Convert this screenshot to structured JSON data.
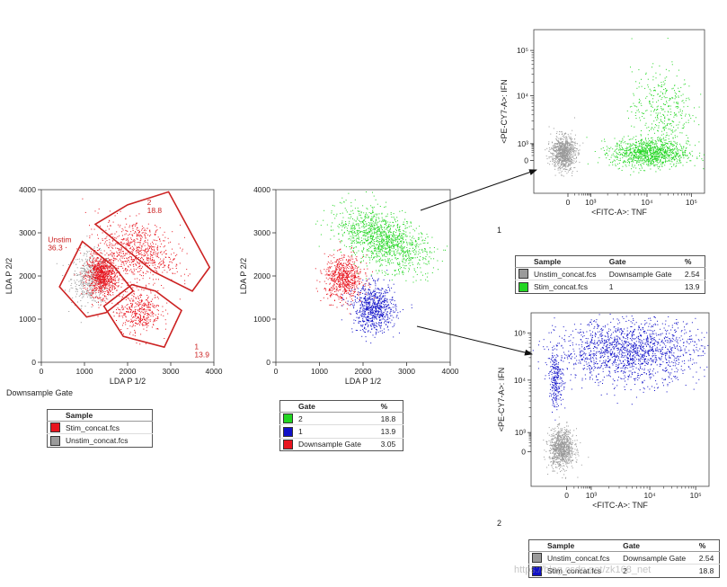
{
  "colors": {
    "red": "#e8141e",
    "gray": "#9a9a9a",
    "green": "#22d622",
    "blue": "#1010c8",
    "gate": "#cc2222"
  },
  "chart_data": [
    {
      "id": "p1",
      "type": "scatter",
      "xlabel": "LDA P 1/2",
      "ylabel": "LDA P 2/2",
      "xlim": [
        0,
        4000
      ],
      "ylim": [
        0,
        4000
      ],
      "xticks": [
        "0",
        "1000",
        "2000",
        "3000",
        "4000"
      ],
      "yticks": [
        "0",
        "1000",
        "2000",
        "3000",
        "4000"
      ],
      "caption": "Downsample Gate",
      "populations": [
        {
          "color": "gray",
          "cx": 1150,
          "cy": 1950,
          "sx": 230,
          "sy": 300,
          "n": 500
        },
        {
          "color": "red",
          "cx": 1400,
          "cy": 2000,
          "sx": 170,
          "sy": 230,
          "n": 900
        },
        {
          "color": "red",
          "cx": 2200,
          "cy": 2600,
          "sx": 470,
          "sy": 330,
          "n": 750,
          "rot": -0.35
        },
        {
          "color": "red",
          "cx": 2250,
          "cy": 1200,
          "sx": 260,
          "sy": 250,
          "n": 420
        }
      ],
      "gates": [
        {
          "name": "Unstim",
          "value": "36.3",
          "label_at": [
            150,
            2780
          ],
          "poly": [
            [
              420,
              1750
            ],
            [
              950,
              2800
            ],
            [
              1700,
              2200
            ],
            [
              2130,
              1650
            ],
            [
              1500,
              1150
            ],
            [
              1050,
              1050
            ]
          ]
        },
        {
          "name": "2",
          "value": "18.8",
          "label_at": [
            2450,
            3650
          ],
          "poly": [
            [
              1250,
              3200
            ],
            [
              2000,
              3650
            ],
            [
              2950,
              3950
            ],
            [
              3900,
              2200
            ],
            [
              3500,
              1650
            ],
            [
              2600,
              2100
            ]
          ]
        },
        {
          "name": "1",
          "value": "13.9",
          "label_at": [
            3550,
            300
          ],
          "poly": [
            [
              1450,
              1300
            ],
            [
              2100,
              1800
            ],
            [
              2650,
              1650
            ],
            [
              3250,
              1200
            ],
            [
              2850,
              350
            ],
            [
              1900,
              600
            ]
          ]
        }
      ],
      "legend": {
        "headers": [
          "",
          "Sample"
        ],
        "rows": [
          {
            "color": "red",
            "cells": [
              "Stim_concat.fcs"
            ]
          },
          {
            "color": "gray",
            "cells": [
              "Unstim_concat.fcs"
            ]
          }
        ]
      }
    },
    {
      "id": "p2",
      "type": "scatter",
      "xlabel": "LDA P 1/2",
      "ylabel": "LDA P 2/2",
      "xlim": [
        0,
        4000
      ],
      "ylim": [
        0,
        4000
      ],
      "xticks": [
        "0",
        "1000",
        "2000",
        "3000",
        "4000"
      ],
      "yticks": [
        "0",
        "1000",
        "2000",
        "3000",
        "4000"
      ],
      "populations": [
        {
          "color": "red",
          "cx": 1550,
          "cy": 1950,
          "sx": 220,
          "sy": 260,
          "n": 700
        },
        {
          "color": "green",
          "cx": 2450,
          "cy": 2850,
          "sx": 560,
          "sy": 290,
          "n": 1300,
          "rot": -0.45
        },
        {
          "color": "blue",
          "cx": 2250,
          "cy": 1250,
          "sx": 240,
          "sy": 270,
          "n": 750
        }
      ],
      "legend": {
        "headers": [
          "",
          "Gate",
          "%"
        ],
        "rows": [
          {
            "color": "green",
            "cells": [
              "2",
              "18.8"
            ]
          },
          {
            "color": "blue",
            "cells": [
              "1",
              "13.9"
            ]
          },
          {
            "color": "red",
            "cells": [
              "Downsample Gate",
              "3.05"
            ]
          }
        ]
      }
    },
    {
      "id": "p3",
      "type": "scatter",
      "xlabel": "<FITC-A>: TNF",
      "ylabel": "<PE-CY7-A>: IFN",
      "xscale": "biexponential",
      "yscale": "biexponential",
      "xticks": [
        "0",
        "10³",
        "10⁴",
        "10⁵"
      ],
      "yticks": [
        "0",
        "10³",
        "10⁴",
        "10⁵"
      ],
      "caption": "1",
      "populations": [
        {
          "color": "gray",
          "cx": 0.17,
          "cy": 0.25,
          "sx": 0.035,
          "sy": 0.05,
          "n": 900
        },
        {
          "color": "green",
          "cx": 0.68,
          "cy": 0.25,
          "sx": 0.11,
          "sy": 0.045,
          "n": 1100
        },
        {
          "color": "green",
          "cx": 0.75,
          "cy": 0.52,
          "sx": 0.09,
          "sy": 0.12,
          "n": 350
        }
      ],
      "legend": {
        "headers": [
          "",
          "Sample",
          "Gate",
          "%"
        ],
        "rows": [
          {
            "color": "gray",
            "cells": [
              "Unstim_concat.fcs",
              "Downsample Gate",
              "2.54"
            ]
          },
          {
            "color": "green",
            "cells": [
              "Stim_concat.fcs",
              "1",
              "13.9"
            ]
          }
        ]
      }
    },
    {
      "id": "p4",
      "type": "scatter",
      "xlabel": "<FITC-A>: TNF",
      "ylabel": "<PE-CY7-A>: IFN",
      "xscale": "biexponential",
      "yscale": "biexponential",
      "xticks": [
        "0",
        "10³",
        "10⁴",
        "10⁵"
      ],
      "yticks": [
        "0",
        "10³",
        "10⁴",
        "10⁵"
      ],
      "caption": "2",
      "populations": [
        {
          "color": "gray",
          "cx": 0.17,
          "cy": 0.22,
          "sx": 0.035,
          "sy": 0.055,
          "n": 900
        },
        {
          "color": "blue",
          "cx": 0.55,
          "cy": 0.78,
          "sx": 0.2,
          "sy": 0.09,
          "n": 1600
        },
        {
          "color": "blue",
          "cx": 0.14,
          "cy": 0.62,
          "sx": 0.02,
          "sy": 0.08,
          "n": 250
        }
      ],
      "legend": {
        "headers": [
          "",
          "Sample",
          "Gate",
          "%"
        ],
        "rows": [
          {
            "color": "gray",
            "cells": [
              "Unstim_concat.fcs",
              "Downsample Gate",
              "2.54"
            ]
          },
          {
            "color": "blue",
            "cells": [
              "Stim_concat.fcs",
              "2",
              "18.8"
            ]
          }
        ]
      }
    }
  ],
  "watermark": "https://blog.csdn.net/zk168_net"
}
